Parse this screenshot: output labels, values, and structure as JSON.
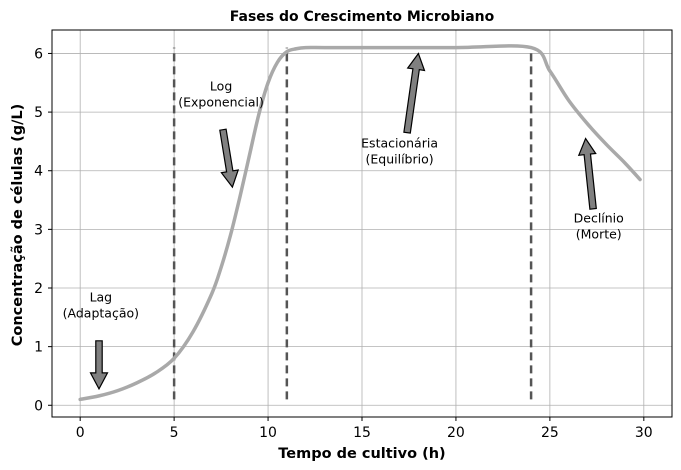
{
  "chart_data": {
    "type": "line",
    "title": "Fases do Crescimento Microbiano",
    "xlabel": "Tempo de cultivo (h)",
    "ylabel": "Concentração de células (g/L)",
    "xlim": [
      -1.5,
      31.5
    ],
    "ylim": [
      -0.2,
      6.4
    ],
    "xticks": [
      0,
      5,
      10,
      15,
      20,
      25,
      30
    ],
    "yticks": [
      0,
      1,
      2,
      3,
      4,
      5,
      6
    ],
    "grid": true,
    "series": [
      {
        "color": "#a9a9a9",
        "x": [
          0,
          1,
          2,
          3,
          4,
          5,
          6,
          7,
          7.5,
          8,
          8.5,
          9,
          9.5,
          10,
          10.5,
          11,
          11.5,
          12,
          13,
          15,
          20,
          24,
          25,
          26,
          27,
          28,
          29,
          29.8
        ],
        "y": [
          0.1,
          0.16,
          0.25,
          0.38,
          0.55,
          0.8,
          1.25,
          1.9,
          2.35,
          2.9,
          3.55,
          4.25,
          4.95,
          5.5,
          5.85,
          6.03,
          6.08,
          6.1,
          6.1,
          6.1,
          6.1,
          6.1,
          5.7,
          5.2,
          4.8,
          4.45,
          4.13,
          3.85
        ]
      }
    ],
    "phase_lines": {
      "color": "#555555",
      "x": [
        5,
        11,
        24
      ],
      "y_range": [
        0.1,
        6.1
      ]
    },
    "annotations": [
      {
        "lines": [
          "Lag",
          "(Adaptação)"
        ],
        "text_x": 1.1,
        "text_y": 1.77,
        "arrow_from": [
          1.0,
          1.1
        ],
        "arrow_to": [
          1.0,
          0.28
        ]
      },
      {
        "lines": [
          "Log",
          "(Exponencial)"
        ],
        "text_x": 7.5,
        "text_y": 5.37,
        "arrow_from": [
          7.6,
          4.7
        ],
        "arrow_to": [
          8.1,
          3.72
        ]
      },
      {
        "lines": [
          "Estacionária",
          "(Equilíbrio)"
        ],
        "text_x": 17.0,
        "text_y": 4.4,
        "arrow_from": [
          17.4,
          4.65
        ],
        "arrow_to": [
          18.0,
          6.0
        ]
      },
      {
        "lines": [
          "Declínio",
          "(Morte)"
        ],
        "text_x": 27.6,
        "text_y": 3.12,
        "arrow_from": [
          27.3,
          3.35
        ],
        "arrow_to": [
          26.9,
          4.55
        ]
      }
    ]
  }
}
